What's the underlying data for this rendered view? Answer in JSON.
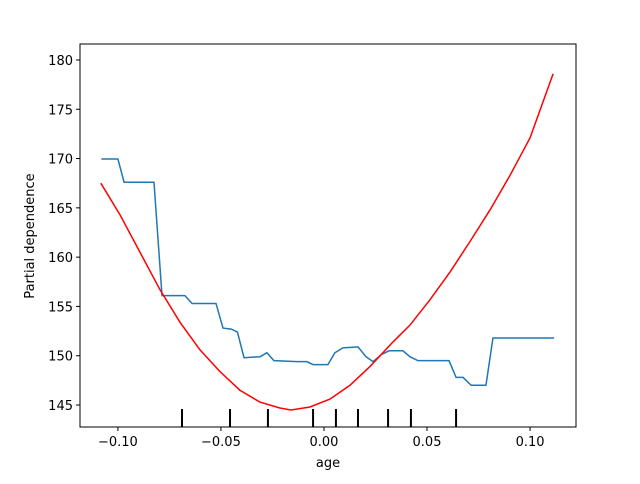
{
  "chart_data": {
    "type": "line",
    "xlabel": "age",
    "ylabel": "Partial dependence",
    "xlim": [
      -0.1184,
      0.1223
    ],
    "ylim": [
      142.77,
      181.62
    ],
    "xticks": [
      {
        "value": -0.1,
        "label": "−0.10"
      },
      {
        "value": -0.05,
        "label": "−0.05"
      },
      {
        "value": 0,
        "label": "0.00"
      },
      {
        "value": 0.05,
        "label": "0.05"
      },
      {
        "value": 0.1,
        "label": "0.10"
      }
    ],
    "yticks": [
      145,
      150,
      155,
      160,
      165,
      170,
      175,
      180
    ],
    "series": [
      {
        "color": "#1f77b4",
        "x": [
          -0.108,
          -0.1,
          -0.097,
          -0.0825,
          -0.0786,
          -0.0675,
          -0.064,
          -0.0524,
          -0.049,
          -0.045,
          -0.042,
          -0.0388,
          -0.031,
          -0.0277,
          -0.0243,
          -0.0131,
          -0.0083,
          -0.0053,
          0.0019,
          0.0053,
          0.0092,
          0.0165,
          0.0204,
          0.0238,
          0.0277,
          0.0316,
          0.0383,
          0.0417,
          0.0456,
          0.0607,
          0.0641,
          0.0675,
          0.0714,
          0.0786,
          0.082,
          0.1117
        ],
        "values": [
          169.95,
          169.95,
          167.6,
          167.6,
          156.1,
          156.1,
          155.3,
          155.3,
          152.8,
          152.7,
          152.4,
          149.8,
          149.9,
          150.3,
          149.5,
          149.4,
          149.4,
          149.1,
          149.1,
          150.3,
          150.8,
          150.9,
          149.9,
          149.4,
          150.1,
          150.5,
          150.5,
          149.9,
          149.5,
          149.5,
          147.8,
          147.8,
          147.0,
          147.0,
          151.8,
          151.8
        ]
      },
      {
        "color": "#ff0000",
        "x": [
          -0.1083,
          -0.099,
          -0.0893,
          -0.0796,
          -0.0699,
          -0.0602,
          -0.0505,
          -0.0408,
          -0.0311,
          -0.0214,
          -0.016,
          -0.0068,
          0.0029,
          0.0126,
          0.0223,
          0.0335,
          0.0417,
          0.0515,
          0.0612,
          0.0709,
          0.0806,
          0.0903,
          0.1,
          0.1112
        ],
        "values": [
          167.5,
          164.3,
          160.5,
          156.7,
          153.4,
          150.6,
          148.4,
          146.5,
          145.3,
          144.7,
          144.5,
          144.8,
          145.6,
          147.0,
          148.9,
          151.4,
          153.1,
          155.7,
          158.5,
          161.6,
          164.8,
          168.3,
          172.1,
          178.6
        ]
      }
    ],
    "deciles": [
      -0.0689,
      -0.0456,
      -0.0272,
      -0.0053,
      0.0058,
      0.0165,
      0.0311,
      0.0422,
      0.0641
    ]
  }
}
